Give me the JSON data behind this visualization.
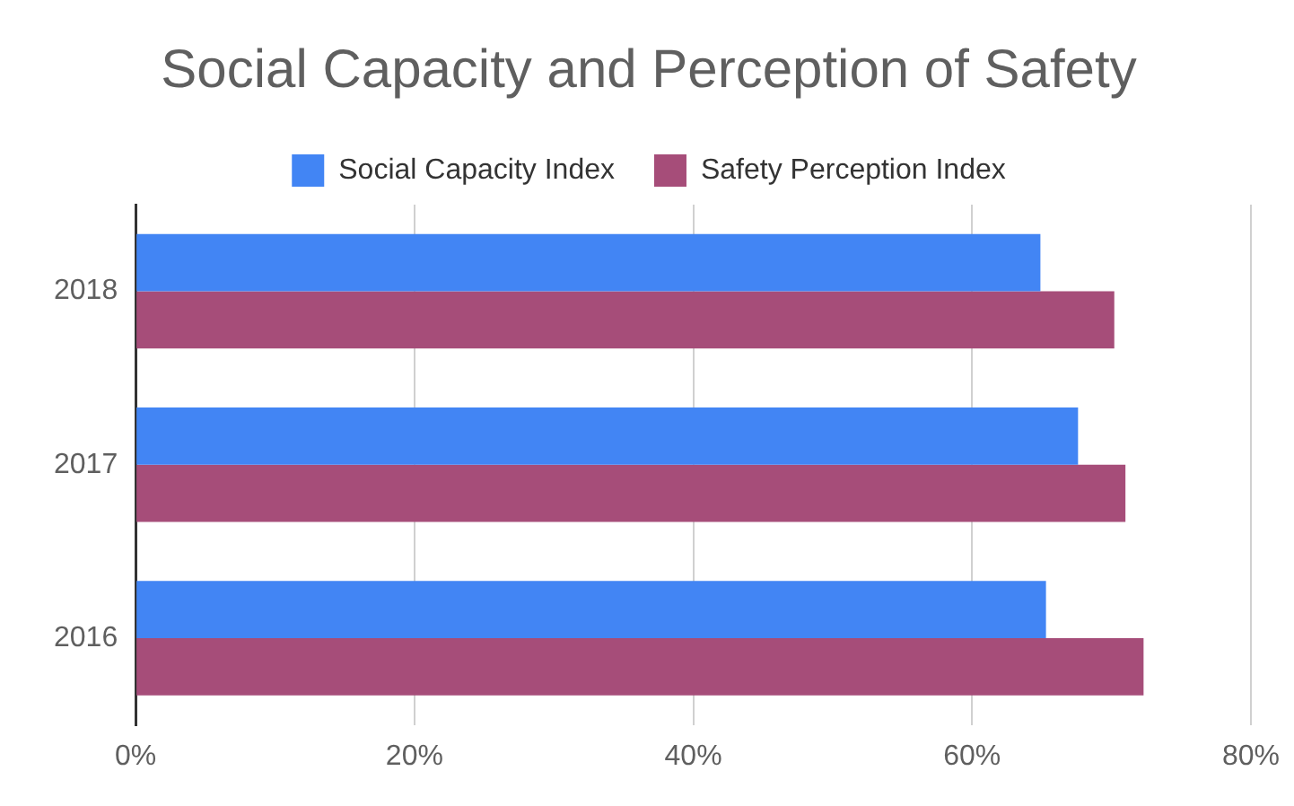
{
  "chart_data": {
    "type": "bar",
    "orientation": "horizontal",
    "title": "Social Capacity and Perception of Safety",
    "categories": [
      "2018",
      "2017",
      "2016"
    ],
    "series": [
      {
        "name": "Social Capacity Index",
        "color": "#4285f4",
        "values": [
          64.9,
          67.6,
          65.3
        ]
      },
      {
        "name": "Safety Perception Index",
        "color": "#a64d79",
        "values": [
          70.2,
          71.0,
          72.3
        ]
      }
    ],
    "xlim": [
      0,
      80
    ],
    "xticks": [
      {
        "value": 0,
        "label": "0%"
      },
      {
        "value": 20,
        "label": "20%"
      },
      {
        "value": 40,
        "label": "40%"
      },
      {
        "value": 60,
        "label": "60%"
      },
      {
        "value": 80,
        "label": "80%"
      }
    ],
    "grid": "x",
    "legend": "top"
  }
}
